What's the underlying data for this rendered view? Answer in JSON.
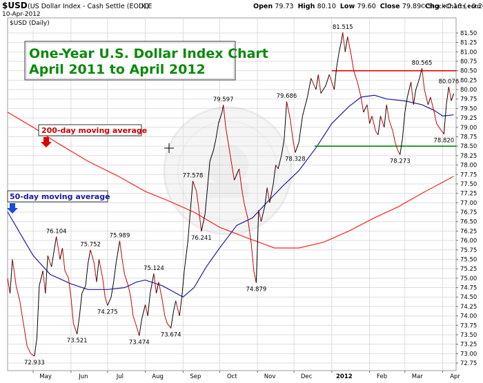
{
  "header": {
    "symbol": "$USD",
    "description": "(US Dollar Index - Cash Settle (EOD))",
    "exchange": "ICE",
    "date": "10-Apr-2012",
    "ohlc": [
      {
        "label": "Open",
        "value": "79.73"
      },
      {
        "label": "High",
        "value": "80.10"
      },
      {
        "label": "Low",
        "value": "79.60"
      },
      {
        "label": "Close",
        "value": "79.89"
      },
      {
        "label": "Chg",
        "value": "+0.16 (+0.20%)"
      }
    ],
    "credit": "© StockCharts.com",
    "legend_label": "$USD (Daily)"
  },
  "annotations": {
    "title_lines": [
      "One-Year U.S. Dollar Index Chart",
      "April 2011 to April 2012"
    ],
    "ma200_label": "200-day moving average",
    "ma50_label": "50-day moving average"
  },
  "colors": {
    "price_up": "#000000",
    "price_down": "#cc0000",
    "ma50": "#1a1aa0",
    "ma200": "#ff2020",
    "resistance": "#dd0000",
    "support": "#008800",
    "title_text": "#0a8a0a",
    "grid": "#dddddd"
  },
  "chart_data": {
    "type": "line",
    "title": "One-Year U.S. Dollar Index Chart April 2011 to April 2012",
    "xlabel": "",
    "ylabel": "",
    "ylim": [
      72.55,
      81.9
    ],
    "y_ticks": [
      "72.75",
      "73.00",
      "73.25",
      "73.50",
      "73.75",
      "74.00",
      "74.25",
      "74.50",
      "74.75",
      "75.00",
      "75.25",
      "75.50",
      "75.75",
      "76.00",
      "76.25",
      "76.50",
      "76.75",
      "77.00",
      "77.25",
      "77.50",
      "77.75",
      "78.00",
      "78.25",
      "78.50",
      "78.75",
      "79.00",
      "79.25",
      "79.50",
      "79.75",
      "80.00",
      "80.25",
      "80.50",
      "80.75",
      "81.00",
      "81.25",
      "81.50"
    ],
    "x_ticks": [
      {
        "label": "May",
        "date": "2011-05-01"
      },
      {
        "label": "Jun",
        "date": "2011-06-01"
      },
      {
        "label": "Jul",
        "date": "2011-07-01"
      },
      {
        "label": "Aug",
        "date": "2011-08-01"
      },
      {
        "label": "Sep",
        "date": "2011-09-01"
      },
      {
        "label": "Oct",
        "date": "2011-10-01"
      },
      {
        "label": "Nov",
        "date": "2011-11-01"
      },
      {
        "label": "Dec",
        "date": "2011-12-01"
      },
      {
        "label": "2012",
        "date": "2012-01-01"
      },
      {
        "label": "Feb",
        "date": "2012-02-01"
      },
      {
        "label": "Mar",
        "date": "2012-03-01"
      },
      {
        "label": "Apr",
        "date": "2012-04-01"
      }
    ],
    "x_range": [
      "2011-04-10",
      "2012-04-12"
    ],
    "grid": true,
    "series": [
      {
        "name": "$USD (Daily)",
        "points": [
          [
            "2011-04-10",
            75.0
          ],
          [
            "2011-04-12",
            74.6
          ],
          [
            "2011-04-14",
            75.5
          ],
          [
            "2011-04-17",
            74.8
          ],
          [
            "2011-04-20",
            74.4
          ],
          [
            "2011-04-23",
            73.8
          ],
          [
            "2011-04-26",
            73.2
          ],
          [
            "2011-04-29",
            73.0
          ],
          [
            "2011-05-02",
            72.933
          ],
          [
            "2011-05-04",
            73.4
          ],
          [
            "2011-05-06",
            74.8
          ],
          [
            "2011-05-09",
            75.2
          ],
          [
            "2011-05-11",
            74.6
          ],
          [
            "2011-05-13",
            75.6
          ],
          [
            "2011-05-16",
            75.3
          ],
          [
            "2011-05-18",
            75.7
          ],
          [
            "2011-05-20",
            76.104
          ],
          [
            "2011-05-23",
            75.5
          ],
          [
            "2011-05-25",
            75.8
          ],
          [
            "2011-05-27",
            75.2
          ],
          [
            "2011-05-30",
            75.0
          ],
          [
            "2011-06-01",
            74.5
          ],
          [
            "2011-06-03",
            73.8
          ],
          [
            "2011-06-06",
            73.521
          ],
          [
            "2011-06-08",
            74.0
          ],
          [
            "2011-06-10",
            74.6
          ],
          [
            "2011-06-13",
            74.8
          ],
          [
            "2011-06-15",
            75.4
          ],
          [
            "2011-06-17",
            75.752
          ],
          [
            "2011-06-20",
            75.4
          ],
          [
            "2011-06-22",
            74.9
          ],
          [
            "2011-06-24",
            75.5
          ],
          [
            "2011-06-27",
            75.0
          ],
          [
            "2011-06-29",
            74.5
          ],
          [
            "2011-07-01",
            74.275
          ],
          [
            "2011-07-04",
            74.5
          ],
          [
            "2011-07-06",
            74.9
          ],
          [
            "2011-07-08",
            75.4
          ],
          [
            "2011-07-11",
            75.989
          ],
          [
            "2011-07-13",
            75.5
          ],
          [
            "2011-07-15",
            75.1
          ],
          [
            "2011-07-18",
            74.8
          ],
          [
            "2011-07-20",
            74.5
          ],
          [
            "2011-07-22",
            74.0
          ],
          [
            "2011-07-25",
            73.7
          ],
          [
            "2011-07-27",
            73.474
          ],
          [
            "2011-07-29",
            73.9
          ],
          [
            "2011-08-01",
            74.3
          ],
          [
            "2011-08-03",
            74.0
          ],
          [
            "2011-08-05",
            74.6
          ],
          [
            "2011-08-08",
            75.124
          ],
          [
            "2011-08-10",
            74.6
          ],
          [
            "2011-08-12",
            74.9
          ],
          [
            "2011-08-15",
            74.4
          ],
          [
            "2011-08-17",
            74.0
          ],
          [
            "2011-08-19",
            73.8
          ],
          [
            "2011-08-22",
            73.674
          ],
          [
            "2011-08-24",
            74.1
          ],
          [
            "2011-08-26",
            74.4
          ],
          [
            "2011-08-29",
            74.0
          ],
          [
            "2011-08-31",
            74.5
          ],
          [
            "2011-09-02",
            75.2
          ],
          [
            "2011-09-05",
            76.0
          ],
          [
            "2011-09-07",
            76.8
          ],
          [
            "2011-09-09",
            77.578
          ],
          [
            "2011-09-12",
            77.3
          ],
          [
            "2011-09-14",
            76.8
          ],
          [
            "2011-09-16",
            76.241
          ],
          [
            "2011-09-19",
            76.7
          ],
          [
            "2011-09-21",
            77.4
          ],
          [
            "2011-09-23",
            78.1
          ],
          [
            "2011-09-26",
            78.4
          ],
          [
            "2011-09-28",
            78.7
          ],
          [
            "2011-09-30",
            79.1
          ],
          [
            "2011-10-03",
            79.4
          ],
          [
            "2011-10-04",
            79.597
          ],
          [
            "2011-10-06",
            79.0
          ],
          [
            "2011-10-10",
            78.2
          ],
          [
            "2011-10-13",
            77.6
          ],
          [
            "2011-10-17",
            77.9
          ],
          [
            "2011-10-19",
            77.4
          ],
          [
            "2011-10-21",
            77.0
          ],
          [
            "2011-10-24",
            76.6
          ],
          [
            "2011-10-27",
            75.9
          ],
          [
            "2011-10-29",
            75.2
          ],
          [
            "2011-10-31",
            74.879
          ],
          [
            "2011-11-02",
            76.8
          ],
          [
            "2011-11-04",
            76.5
          ],
          [
            "2011-11-07",
            76.9
          ],
          [
            "2011-11-09",
            77.4
          ],
          [
            "2011-11-11",
            77.0
          ],
          [
            "2011-11-14",
            77.5
          ],
          [
            "2011-11-16",
            78.0
          ],
          [
            "2011-11-18",
            77.9
          ],
          [
            "2011-11-21",
            78.3
          ],
          [
            "2011-11-23",
            78.7
          ],
          [
            "2011-11-25",
            79.686
          ],
          [
            "2011-11-28",
            79.2
          ],
          [
            "2011-11-30",
            78.7
          ],
          [
            "2011-12-02",
            78.328
          ],
          [
            "2011-12-05",
            78.6
          ],
          [
            "2011-12-08",
            79.3
          ],
          [
            "2011-12-12",
            79.8
          ],
          [
            "2011-12-15",
            80.3
          ],
          [
            "2011-12-19",
            80.0
          ],
          [
            "2011-12-21",
            80.4
          ],
          [
            "2011-12-23",
            79.9
          ],
          [
            "2011-12-27",
            80.1
          ],
          [
            "2011-12-30",
            80.4
          ],
          [
            "2012-01-03",
            80.0
          ],
          [
            "2012-01-05",
            80.6
          ],
          [
            "2012-01-07",
            81.0
          ],
          [
            "2012-01-09",
            81.3
          ],
          [
            "2012-01-10",
            81.515
          ],
          [
            "2012-01-12",
            81.0
          ],
          [
            "2012-01-14",
            81.4
          ],
          [
            "2012-01-17",
            80.9
          ],
          [
            "2012-01-19",
            80.5
          ],
          [
            "2012-01-22",
            80.2
          ],
          [
            "2012-01-25",
            79.8
          ],
          [
            "2012-01-27",
            79.4
          ],
          [
            "2012-01-30",
            79.6
          ],
          [
            "2012-02-01",
            79.1
          ],
          [
            "2012-02-03",
            79.3
          ],
          [
            "2012-02-06",
            78.9
          ],
          [
            "2012-02-08",
            78.8
          ],
          [
            "2012-02-10",
            79.3
          ],
          [
            "2012-02-13",
            79.0
          ],
          [
            "2012-02-15",
            79.6
          ],
          [
            "2012-02-17",
            79.2
          ],
          [
            "2012-02-20",
            78.9
          ],
          [
            "2012-02-22",
            78.6
          ],
          [
            "2012-02-24",
            78.4
          ],
          [
            "2012-02-26",
            78.273
          ],
          [
            "2012-02-28",
            78.7
          ],
          [
            "2012-03-01",
            79.4
          ],
          [
            "2012-03-03",
            79.8
          ],
          [
            "2012-03-06",
            80.2
          ],
          [
            "2012-03-08",
            79.6
          ],
          [
            "2012-03-10",
            80.0
          ],
          [
            "2012-03-13",
            80.3
          ],
          [
            "2012-03-15",
            80.565
          ],
          [
            "2012-03-17",
            80.0
          ],
          [
            "2012-03-20",
            79.6
          ],
          [
            "2012-03-22",
            79.8
          ],
          [
            "2012-03-25",
            79.4
          ],
          [
            "2012-03-27",
            79.1
          ],
          [
            "2012-03-29",
            79.0
          ],
          [
            "2012-04-02",
            78.82
          ],
          [
            "2012-04-04",
            79.6
          ],
          [
            "2012-04-06",
            80.076
          ],
          [
            "2012-04-08",
            79.7
          ],
          [
            "2012-04-10",
            79.89
          ]
        ]
      },
      {
        "name": "50-day moving average",
        "points": [
          [
            "2011-04-10",
            76.76
          ],
          [
            "2011-04-20",
            76.2
          ],
          [
            "2011-05-01",
            75.6
          ],
          [
            "2011-05-15",
            75.1
          ],
          [
            "2011-06-01",
            74.85
          ],
          [
            "2011-06-15",
            74.7
          ],
          [
            "2011-07-01",
            74.7
          ],
          [
            "2011-07-15",
            74.75
          ],
          [
            "2011-07-25",
            74.9
          ],
          [
            "2011-08-01",
            74.95
          ],
          [
            "2011-08-15",
            74.8
          ],
          [
            "2011-09-01",
            74.5
          ],
          [
            "2011-09-10",
            74.75
          ],
          [
            "2011-09-20",
            75.3
          ],
          [
            "2011-10-01",
            75.8
          ],
          [
            "2011-10-15",
            76.4
          ],
          [
            "2011-10-28",
            76.6
          ],
          [
            "2011-11-10",
            77.05
          ],
          [
            "2011-11-22",
            77.45
          ],
          [
            "2011-12-05",
            77.85
          ],
          [
            "2011-12-20",
            78.5
          ],
          [
            "2012-01-01",
            79.1
          ],
          [
            "2012-01-15",
            79.55
          ],
          [
            "2012-01-25",
            79.8
          ],
          [
            "2012-02-05",
            79.85
          ],
          [
            "2012-02-15",
            79.75
          ],
          [
            "2012-03-01",
            79.7
          ],
          [
            "2012-03-15",
            79.6
          ],
          [
            "2012-03-25",
            79.45
          ],
          [
            "2012-04-01",
            79.3
          ],
          [
            "2012-04-10",
            79.33
          ]
        ]
      },
      {
        "name": "200-day moving average",
        "points": [
          [
            "2011-04-10",
            79.4
          ],
          [
            "2011-05-01",
            79.0
          ],
          [
            "2011-05-20",
            78.6
          ],
          [
            "2011-06-15",
            78.1
          ],
          [
            "2011-07-10",
            77.7
          ],
          [
            "2011-08-01",
            77.3
          ],
          [
            "2011-08-20",
            77.05
          ],
          [
            "2011-09-10",
            76.75
          ],
          [
            "2011-10-01",
            76.35
          ],
          [
            "2011-10-25",
            76.05
          ],
          [
            "2011-11-15",
            75.8
          ],
          [
            "2011-12-05",
            75.8
          ],
          [
            "2011-12-25",
            75.95
          ],
          [
            "2012-01-15",
            76.25
          ],
          [
            "2012-02-05",
            76.6
          ],
          [
            "2012-02-25",
            76.9
          ],
          [
            "2012-03-15",
            77.25
          ],
          [
            "2012-04-10",
            77.7
          ]
        ]
      }
    ],
    "data_labels": [
      {
        "date": "2011-05-02",
        "value": 72.933,
        "text": "72.933",
        "pos": "below"
      },
      {
        "date": "2011-05-20",
        "value": 76.104,
        "text": "76.104",
        "pos": "above"
      },
      {
        "date": "2011-06-06",
        "value": 73.521,
        "text": "73.521",
        "pos": "below"
      },
      {
        "date": "2011-06-17",
        "value": 75.752,
        "text": "75.752",
        "pos": "above"
      },
      {
        "date": "2011-07-01",
        "value": 74.275,
        "text": "74.275",
        "pos": "below"
      },
      {
        "date": "2011-07-11",
        "value": 75.989,
        "text": "75.989",
        "pos": "above"
      },
      {
        "date": "2011-07-27",
        "value": 73.474,
        "text": "73.474",
        "pos": "below"
      },
      {
        "date": "2011-08-08",
        "value": 75.124,
        "text": "75.124",
        "pos": "above"
      },
      {
        "date": "2011-08-22",
        "value": 73.674,
        "text": "73.674",
        "pos": "below"
      },
      {
        "date": "2011-09-09",
        "value": 77.578,
        "text": "77.578",
        "pos": "above"
      },
      {
        "date": "2011-09-16",
        "value": 76.241,
        "text": "76.241",
        "pos": "below"
      },
      {
        "date": "2011-10-04",
        "value": 79.597,
        "text": "79.597",
        "pos": "above"
      },
      {
        "date": "2011-10-31",
        "value": 74.879,
        "text": "74.879",
        "pos": "below"
      },
      {
        "date": "2011-11-25",
        "value": 79.686,
        "text": "79.686",
        "pos": "above"
      },
      {
        "date": "2011-12-02",
        "value": 78.328,
        "text": "78.328",
        "pos": "below"
      },
      {
        "date": "2012-01-10",
        "value": 81.515,
        "text": "81.515",
        "pos": "above"
      },
      {
        "date": "2012-02-26",
        "value": 78.273,
        "text": "78.273",
        "pos": "below"
      },
      {
        "date": "2012-03-15",
        "value": 80.565,
        "text": "80.565",
        "pos": "above"
      },
      {
        "date": "2012-04-02",
        "value": 78.82,
        "text": "78.820",
        "pos": "below"
      },
      {
        "date": "2012-04-06",
        "value": 80.076,
        "text": "80.076",
        "pos": "above"
      }
    ],
    "levels": [
      {
        "name": "resistance",
        "value": 80.5,
        "from": "2012-01-01",
        "to": "2012-04-12"
      },
      {
        "name": "support",
        "value": 78.5,
        "from": "2011-12-18",
        "to": "2012-04-12"
      }
    ]
  }
}
